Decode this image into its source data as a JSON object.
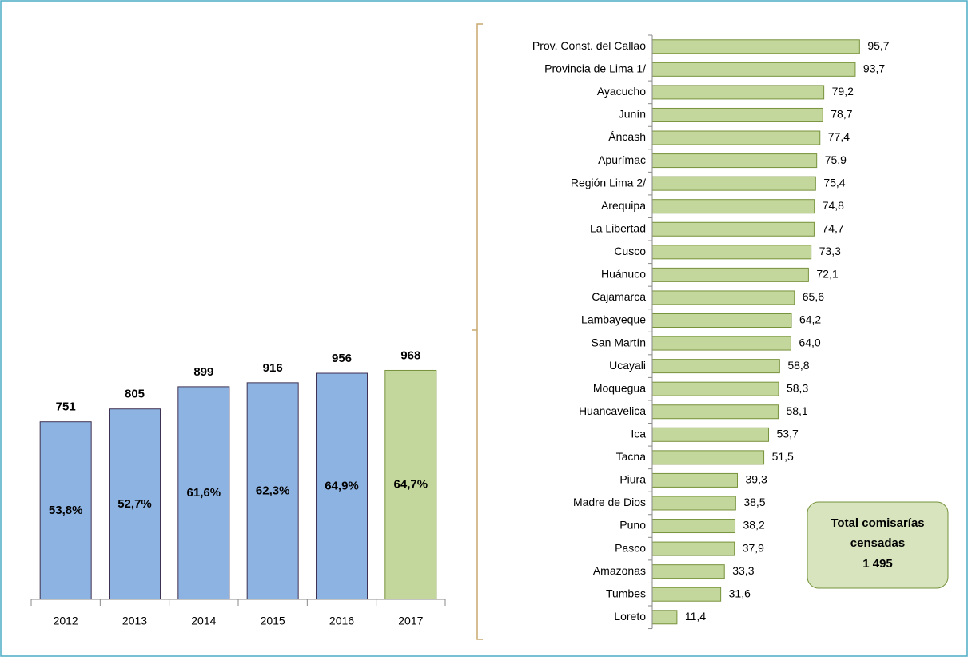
{
  "chart_data": [
    {
      "type": "bar",
      "categories": [
        "2012",
        "2013",
        "2014",
        "2015",
        "2016",
        "2017"
      ],
      "values": [
        751,
        805,
        899,
        916,
        956,
        968
      ],
      "colors": [
        "#8db3e2",
        "#8db3e2",
        "#8db3e2",
        "#8db3e2",
        "#8db3e2",
        "#c3d69b"
      ],
      "shares": [
        53.8,
        52.7,
        61.6,
        62.3,
        64.9,
        64.7
      ],
      "share_labels": [
        "53,8%",
        "52,7%",
        "61,6%",
        "62,3%",
        "64,9%",
        "64,7%"
      ],
      "ylim": [
        0,
        1000
      ]
    },
    {
      "type": "hbar",
      "categories": [
        "Prov. Const. del Callao",
        "Provincia de Lima 1/",
        "Ayacucho",
        "Junín",
        "Áncash",
        "Apurímac",
        "Región Lima 2/",
        "Arequipa",
        "La Libertad",
        "Cusco",
        "Huánuco",
        "Cajamarca",
        "Lambayeque",
        "San Martín",
        "Ucayali",
        "Moquegua",
        "Huancavelica",
        "Ica",
        "Tacna",
        "Piura",
        "Madre de Dios",
        "Puno",
        "Pasco",
        "Amazonas",
        "Tumbes",
        "Loreto"
      ],
      "values": [
        95.7,
        93.7,
        79.2,
        78.7,
        77.4,
        75.9,
        75.4,
        74.8,
        74.7,
        73.3,
        72.1,
        65.6,
        64.2,
        64.0,
        58.8,
        58.3,
        58.1,
        53.7,
        51.5,
        39.3,
        38.5,
        38.2,
        37.9,
        33.3,
        31.6,
        11.4
      ],
      "value_labels": [
        "95,7",
        "93,7",
        "79,2",
        "78,7",
        "77,4",
        "75,9",
        "75,4",
        "74,8",
        "74,7",
        "73,3",
        "72,1",
        "65,6",
        "64,2",
        "64,0",
        "58,8",
        "58,3",
        "58,1",
        "53,7",
        "51,5",
        "39,3",
        "38,5",
        "38,2",
        "37,9",
        "33,3",
        "31,6",
        "11,4"
      ],
      "color": "#c3d69b",
      "xlim": [
        0,
        100
      ],
      "annotation": [
        "Total comisarías",
        "censadas"
      ],
      "total": {
        "value": 1495,
        "label": "1 495"
      }
    }
  ]
}
